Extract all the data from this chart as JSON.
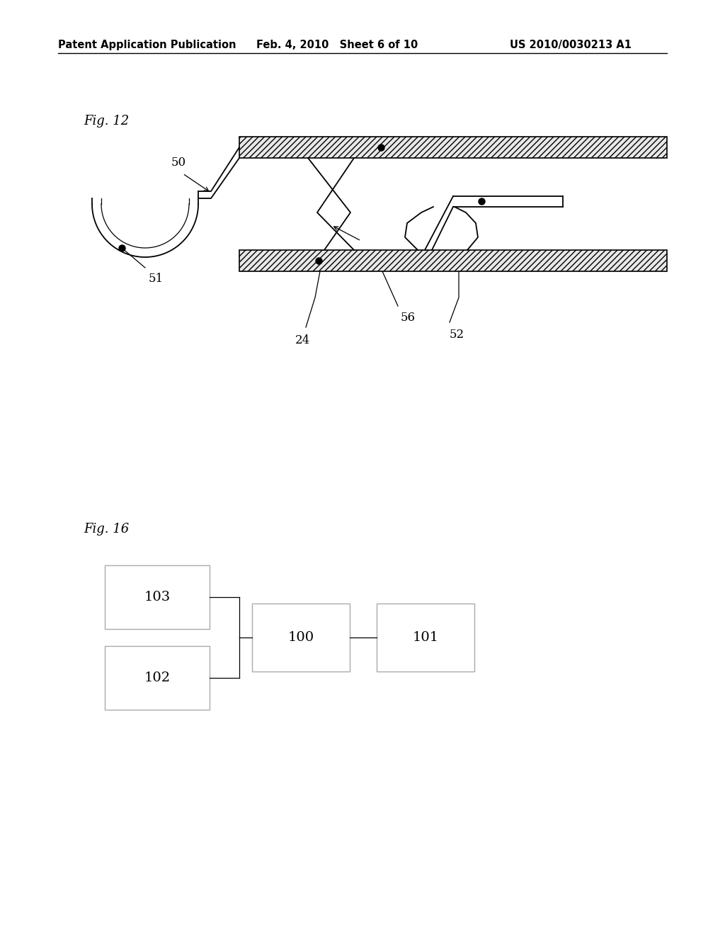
{
  "bg_color": "#ffffff",
  "header_left": "Patent Application Publication",
  "header_center": "Feb. 4, 2010   Sheet 6 of 10",
  "header_right": "US 2010/0030213 A1",
  "fig12_label": "Fig. 12",
  "fig16_label": "Fig. 16"
}
